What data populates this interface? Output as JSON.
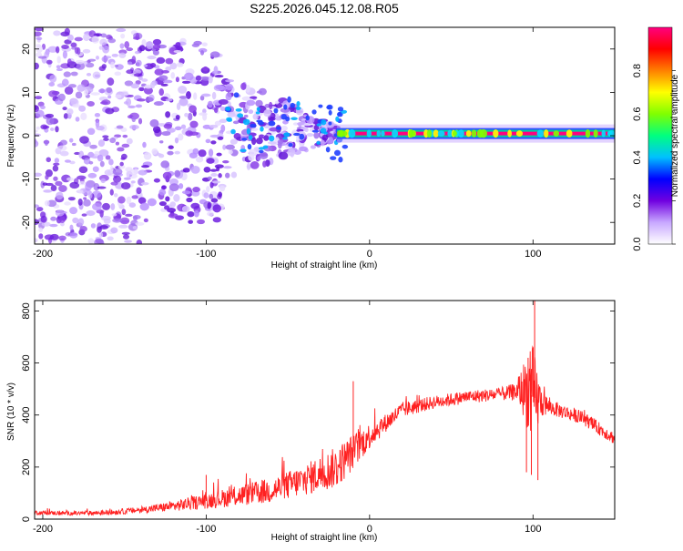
{
  "title": "S225.2026.045.12.08.R05",
  "chart_data": [
    {
      "type": "heatmap",
      "name": "spectrogram",
      "xlabel": "Height of straight line (km)",
      "ylabel": "Frequency (Hz)",
      "xlim": [
        -205,
        150
      ],
      "ylim": [
        -25,
        25
      ],
      "xticks": [
        -200,
        -100,
        0,
        100
      ],
      "yticks": [
        -20,
        -10,
        0,
        10,
        20
      ],
      "colorbar": {
        "label": "Normalized spectral amplitude",
        "range": [
          0,
          1
        ],
        "ticks": [
          "0.0",
          "0.2",
          "0.4",
          "0.6",
          "0.8"
        ],
        "colors": [
          "#ffffff",
          "#c8a8ff",
          "#7000e0",
          "#0000ff",
          "#00c0ff",
          "#00ff80",
          "#80ff00",
          "#ffff00",
          "#ff8000",
          "#ff0000",
          "#ff0080"
        ]
      },
      "ridge": {
        "description": "narrow high-amplitude line near 0 Hz",
        "x_start": -20,
        "x_end": 150,
        "frequency": 0.5,
        "amplitude": 0.95
      },
      "scatter_regions": [
        {
          "x_range": [
            -205,
            -140
          ],
          "y_range": [
            -25,
            25
          ],
          "amplitude_range": [
            0.05,
            0.25
          ]
        },
        {
          "x_range": [
            -140,
            -90
          ],
          "y_range": [
            -20,
            22
          ],
          "amplitude_range": [
            0.05,
            0.3
          ]
        },
        {
          "x_range": [
            -90,
            -20
          ],
          "y_range": [
            -10,
            15
          ],
          "amplitude_range": [
            0.1,
            0.4
          ]
        }
      ]
    },
    {
      "type": "line",
      "name": "snr",
      "xlabel": "Height of straight line (km)",
      "ylabel": "SNR (10 * v/v)",
      "xlim": [
        -205,
        150
      ],
      "ylim": [
        0,
        840
      ],
      "xticks": [
        -200,
        -100,
        0,
        100
      ],
      "yticks": [
        0,
        200,
        400,
        600,
        800
      ],
      "color": "#ff2020",
      "envelope": {
        "x": [
          -205,
          -180,
          -160,
          -140,
          -120,
          -100,
          -80,
          -60,
          -40,
          -20,
          -10,
          0,
          10,
          20,
          40,
          60,
          80,
          90,
          95,
          100,
          105,
          110,
          130,
          150
        ],
        "y": [
          25,
          22,
          25,
          35,
          50,
          70,
          90,
          110,
          150,
          200,
          260,
          320,
          370,
          420,
          450,
          470,
          480,
          490,
          500,
          470,
          450,
          430,
          390,
          310
        ],
        "noise": [
          8,
          8,
          10,
          12,
          20,
          30,
          40,
          50,
          60,
          80,
          70,
          50,
          35,
          30,
          25,
          25,
          25,
          35,
          120,
          200,
          60,
          30,
          25,
          25
        ]
      },
      "spikes": [
        {
          "x": 100,
          "y": 660
        },
        {
          "x": 101,
          "y": 840
        },
        {
          "x": 97,
          "y": 620
        },
        {
          "x": 99,
          "y": 170
        },
        {
          "x": 96,
          "y": 180
        },
        {
          "x": 103,
          "y": 150
        },
        {
          "x": -10,
          "y": 530
        },
        {
          "x": -100,
          "y": 170
        }
      ]
    }
  ]
}
